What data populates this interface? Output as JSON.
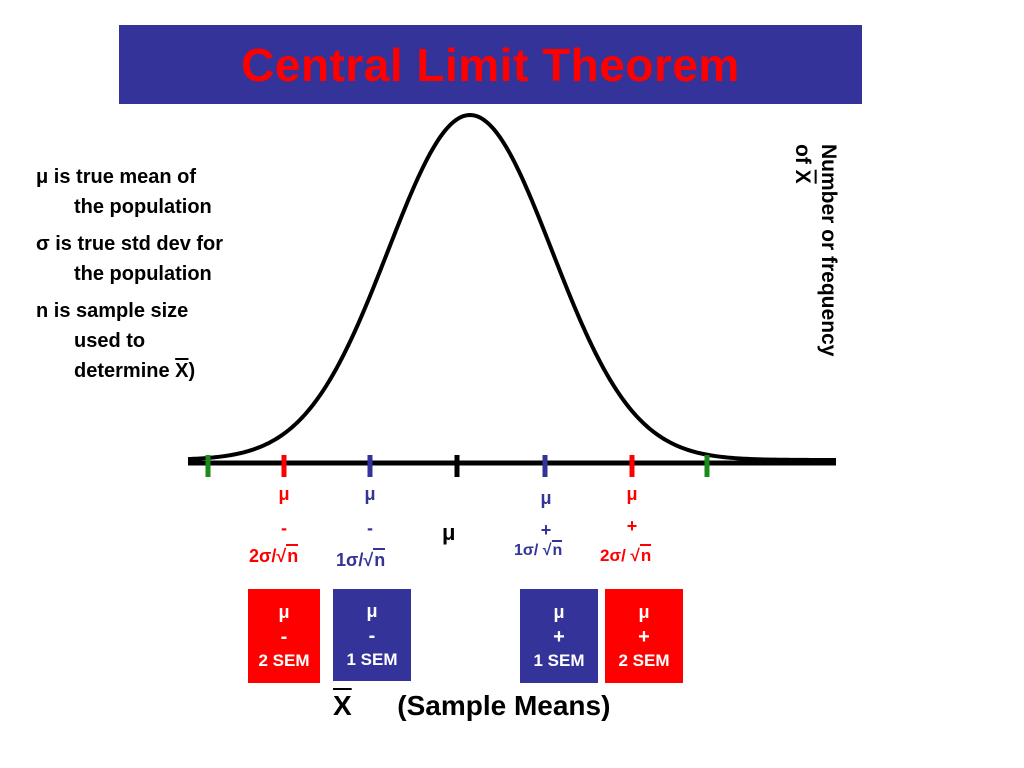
{
  "title": "Central Limit Theorem",
  "notes": [
    {
      "line1": "μ is true mean of",
      "line2": "the population"
    },
    {
      "line1": "σ is true std dev for",
      "line2": "the population"
    },
    {
      "line1": "n is sample size",
      "line2": "used to",
      "line3_pre": "determine ",
      "line3_x": "X",
      "line3_post": ")"
    }
  ],
  "y_axis": {
    "line1": "Number or frequency",
    "line2_pre": "of ",
    "line2_x": "X"
  },
  "tick_labels": {
    "minus2": {
      "mu": "μ",
      "op": "-",
      "formula_pre": "2σ/√",
      "formula_n": "n"
    },
    "minus1": {
      "mu": "μ",
      "op": "-",
      "formula_pre": "1σ/√",
      "formula_n": "n"
    },
    "center": "μ",
    "plus1": {
      "mu": "μ",
      "op": "+",
      "formula_pre": "1σ/ √",
      "formula_n": "n"
    },
    "plus2": {
      "mu": "μ",
      "op": "+",
      "formula_pre": "2σ/ √",
      "formula_n": "n"
    }
  },
  "boxes": [
    {
      "mu": "μ",
      "op": "-",
      "sem": "2 SEM",
      "color": "#ff0000"
    },
    {
      "mu": "μ",
      "op": "-",
      "sem": "1 SEM",
      "color": "#333399"
    },
    {
      "mu": "μ",
      "op": "+",
      "sem": "1 SEM",
      "color": "#333399"
    },
    {
      "mu": "μ",
      "op": "+",
      "sem": "2 SEM",
      "color": "#ff0000"
    }
  ],
  "x_axis": {
    "x": "X",
    "label": "(Sample Means)"
  },
  "colors": {
    "title_bg": "#333399",
    "title_text": "#ff0000",
    "red": "#ff0000",
    "blue": "#333399",
    "green": "#1a8a1a"
  }
}
